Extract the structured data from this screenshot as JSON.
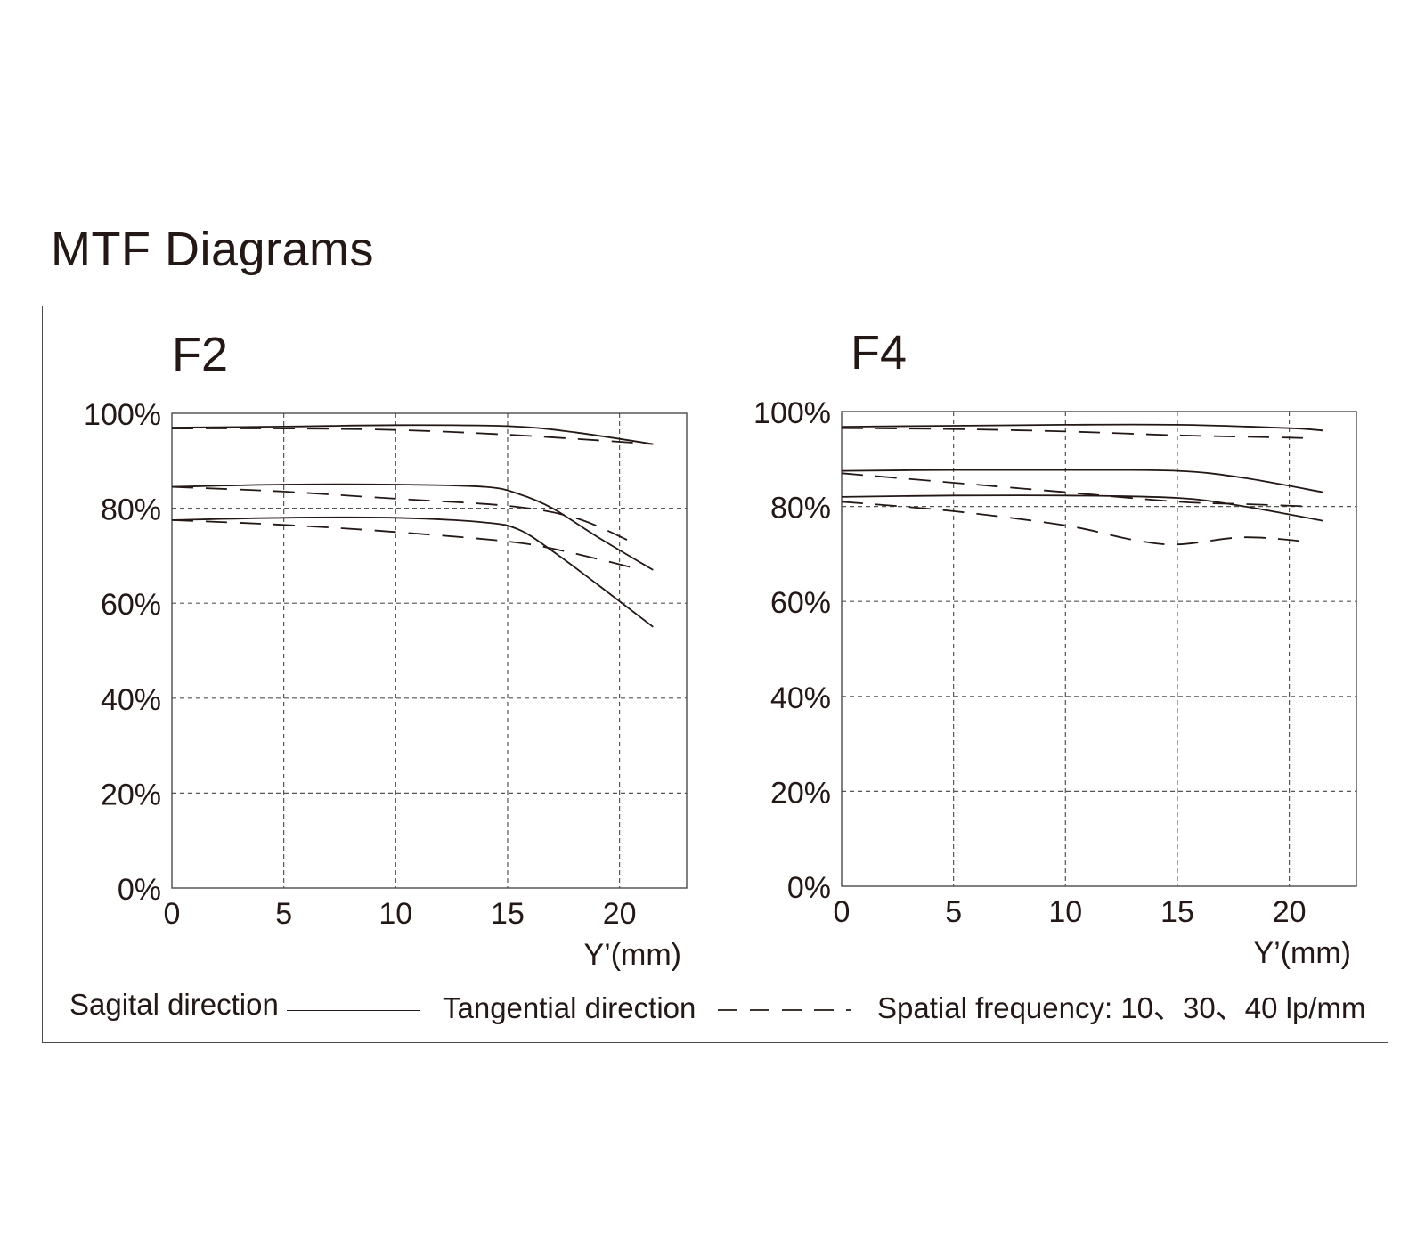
{
  "title": "MTF Diagrams",
  "legend": {
    "sagittal": "Sagital direction",
    "tangential": "Tangential direction",
    "spatial_frequency": "Spatial frequency: 10、30、40 lp/mm"
  },
  "colors": {
    "line": "#231815",
    "grid": "#555555"
  },
  "chart_data": [
    {
      "type": "line",
      "title": "F2",
      "xlabel": "Y’(mm)",
      "ylabel": "",
      "xlim": [
        0,
        23
      ],
      "ylim": [
        0,
        100
      ],
      "x_ticks": [
        0,
        5,
        10,
        15,
        20
      ],
      "y_ticks": [
        0,
        20,
        40,
        60,
        80,
        100
      ],
      "y_tick_labels": [
        "0%",
        "20%",
        "40%",
        "60%",
        "80%",
        "100%"
      ],
      "grid": true,
      "series": [
        {
          "style": "solid",
          "x": [
            0,
            5,
            10,
            15,
            18,
            21.5
          ],
          "y": [
            97,
            97.2,
            97.5,
            97.3,
            96,
            93.5
          ]
        },
        {
          "style": "dashed",
          "x": [
            0,
            5,
            10,
            15,
            20,
            21.5
          ],
          "y": [
            96.8,
            96.8,
            96.5,
            95.5,
            94,
            93.5
          ]
        },
        {
          "style": "solid",
          "x": [
            0,
            5,
            10,
            14,
            15.5,
            17,
            19,
            21.5
          ],
          "y": [
            84.5,
            85,
            85,
            84.5,
            83,
            80,
            74,
            67
          ]
        },
        {
          "style": "dashed",
          "x": [
            0,
            5,
            10,
            15,
            18,
            20.5
          ],
          "y": [
            84.5,
            83.5,
            82,
            80.5,
            78,
            73
          ]
        },
        {
          "style": "solid",
          "x": [
            0,
            5,
            10,
            14,
            15.5,
            17,
            19,
            21.5
          ],
          "y": [
            77.5,
            78,
            78,
            77,
            75.5,
            71,
            64,
            55
          ]
        },
        {
          "style": "dashed",
          "x": [
            0,
            5,
            10,
            15,
            17.5,
            21
          ],
          "y": [
            77.5,
            76.5,
            75,
            73,
            71,
            67
          ]
        }
      ]
    },
    {
      "type": "line",
      "title": "F4",
      "xlabel": "Y’(mm)",
      "ylabel": "",
      "xlim": [
        0,
        23
      ],
      "ylim": [
        0,
        100
      ],
      "x_ticks": [
        0,
        5,
        10,
        15,
        20
      ],
      "y_ticks": [
        0,
        20,
        40,
        60,
        80,
        100
      ],
      "y_tick_labels": [
        "0%",
        "20%",
        "40%",
        "60%",
        "80%",
        "100%"
      ],
      "grid": true,
      "series": [
        {
          "style": "solid",
          "x": [
            0,
            5,
            10,
            15,
            20,
            21.5
          ],
          "y": [
            96.8,
            97,
            97.2,
            97.2,
            96.5,
            96
          ]
        },
        {
          "style": "dashed",
          "x": [
            0,
            5,
            10,
            15,
            20,
            21
          ],
          "y": [
            96.5,
            96.3,
            95.8,
            95,
            94.5,
            94.3
          ]
        },
        {
          "style": "solid",
          "x": [
            0,
            5,
            10,
            15,
            18,
            21.5
          ],
          "y": [
            87.5,
            87.7,
            87.7,
            87.5,
            86,
            83
          ]
        },
        {
          "style": "dashed",
          "x": [
            0,
            5,
            10,
            15,
            18,
            21
          ],
          "y": [
            87,
            85,
            83,
            81,
            80.5,
            80
          ]
        },
        {
          "style": "solid",
          "x": [
            0,
            5,
            10,
            15,
            18,
            21.5
          ],
          "y": [
            82,
            82.3,
            82.3,
            81.8,
            80,
            77
          ]
        },
        {
          "style": "dashed",
          "x": [
            0,
            5,
            10,
            13,
            15,
            18,
            21
          ],
          "y": [
            81,
            79,
            76,
            73,
            72,
            73.5,
            72.5
          ]
        }
      ]
    }
  ]
}
